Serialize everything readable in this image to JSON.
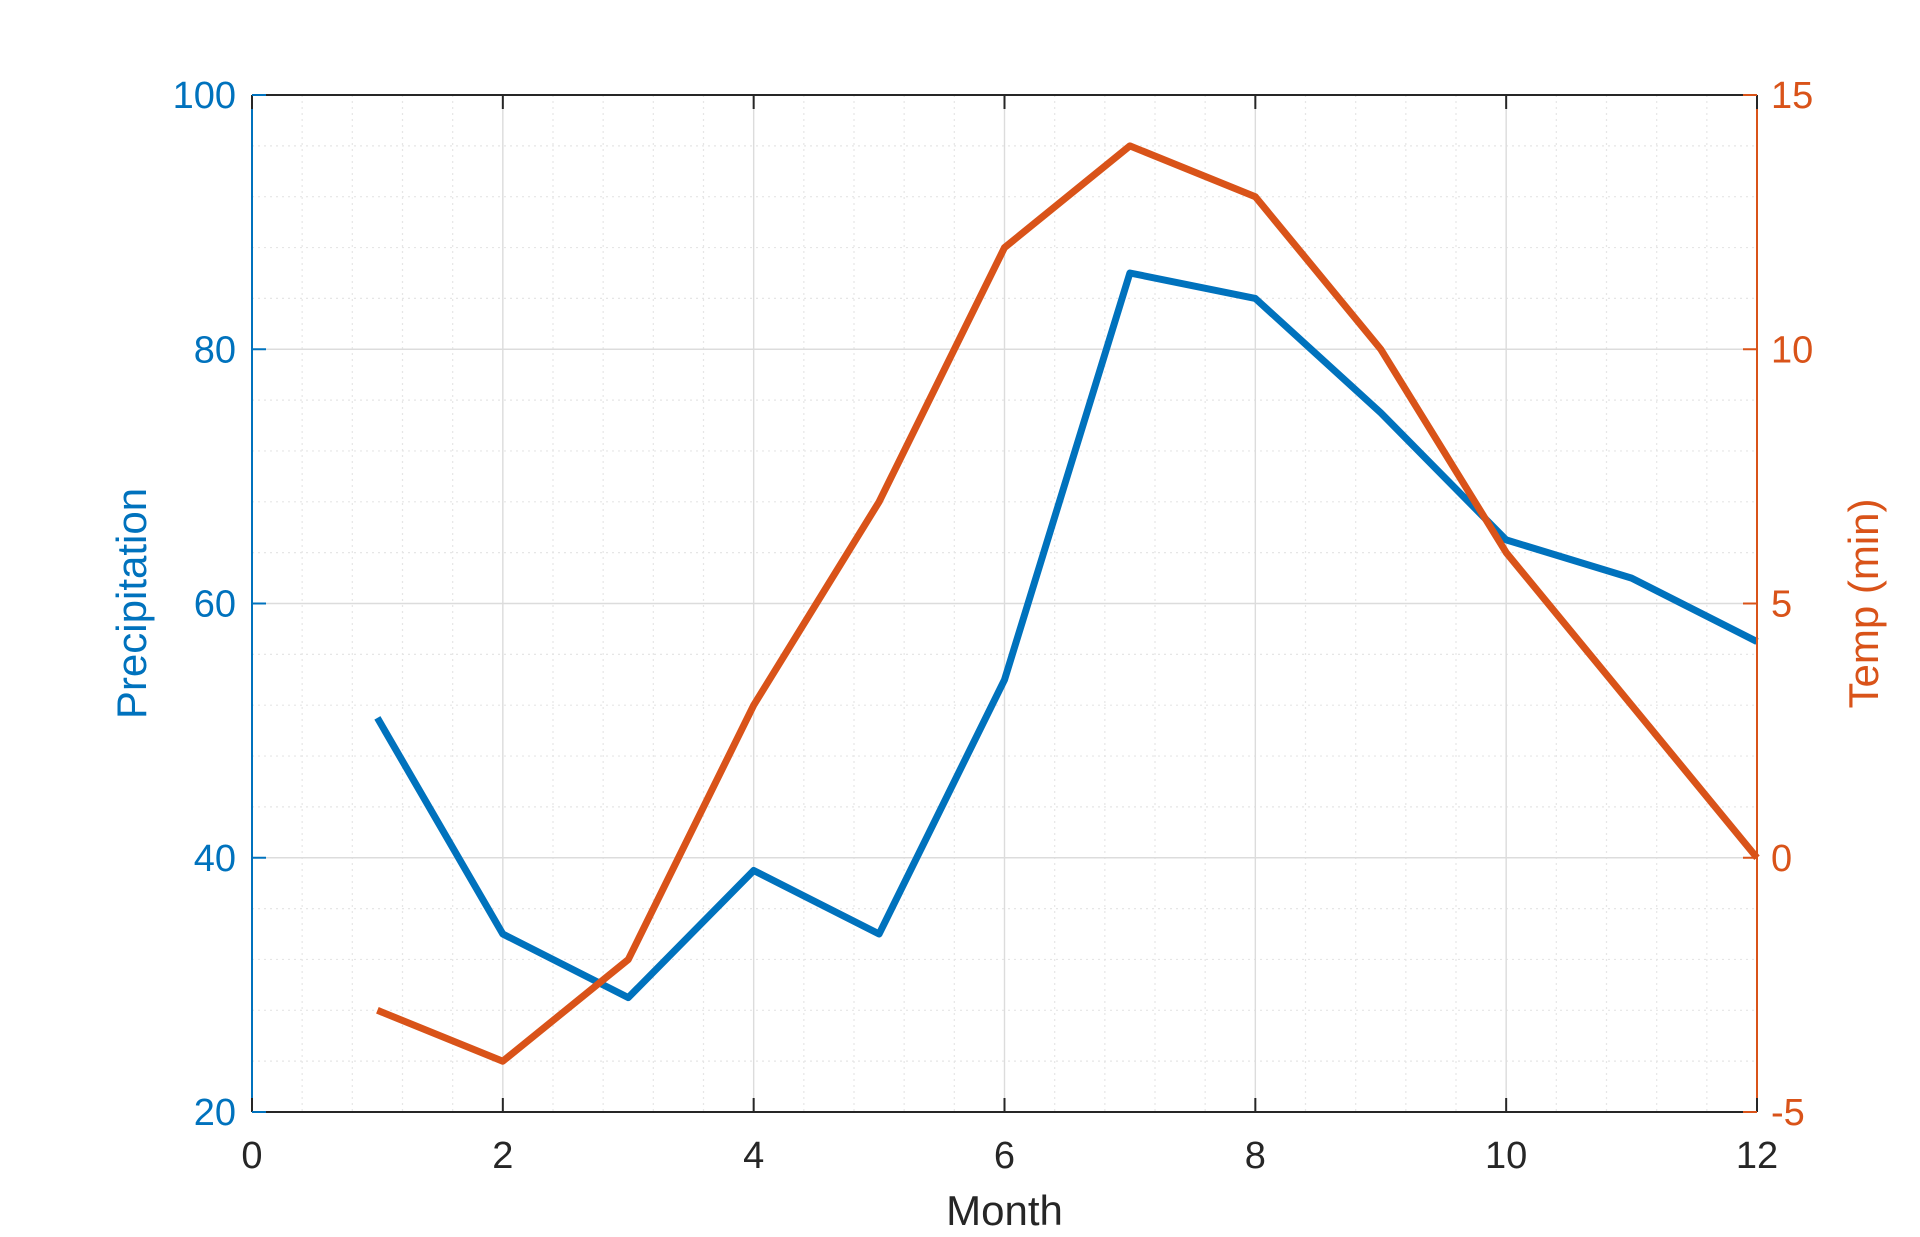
{
  "chart_data": {
    "type": "line",
    "xlabel": "Month",
    "ylabel_left": "Precipitation",
    "ylabel_right": "Temp (min)",
    "xlim": [
      0,
      12
    ],
    "ylim_left": [
      20,
      100
    ],
    "ylim_right": [
      -5,
      15
    ],
    "xticks": [
      0,
      2,
      4,
      6,
      8,
      10,
      12
    ],
    "yticks_left": [
      20,
      40,
      60,
      80,
      100
    ],
    "yticks_right": [
      -5,
      0,
      5,
      10,
      15
    ],
    "grid": "on, with minor grid",
    "x": [
      1,
      2,
      3,
      4,
      5,
      6,
      7,
      8,
      9,
      10,
      11,
      12
    ],
    "series": [
      {
        "axis": "left",
        "color": "#0072BD",
        "values": [
          51,
          34,
          29,
          39,
          34,
          54,
          86,
          84,
          75,
          65,
          62,
          57
        ]
      },
      {
        "axis": "right",
        "color": "#D95319",
        "values": [
          -3,
          -4,
          -2,
          3,
          7,
          12,
          14,
          13,
          10,
          6,
          3,
          0
        ]
      }
    ],
    "colors": {
      "left_axis": "#0072BD",
      "right_axis": "#D95319",
      "x_axis": "#262626"
    }
  }
}
